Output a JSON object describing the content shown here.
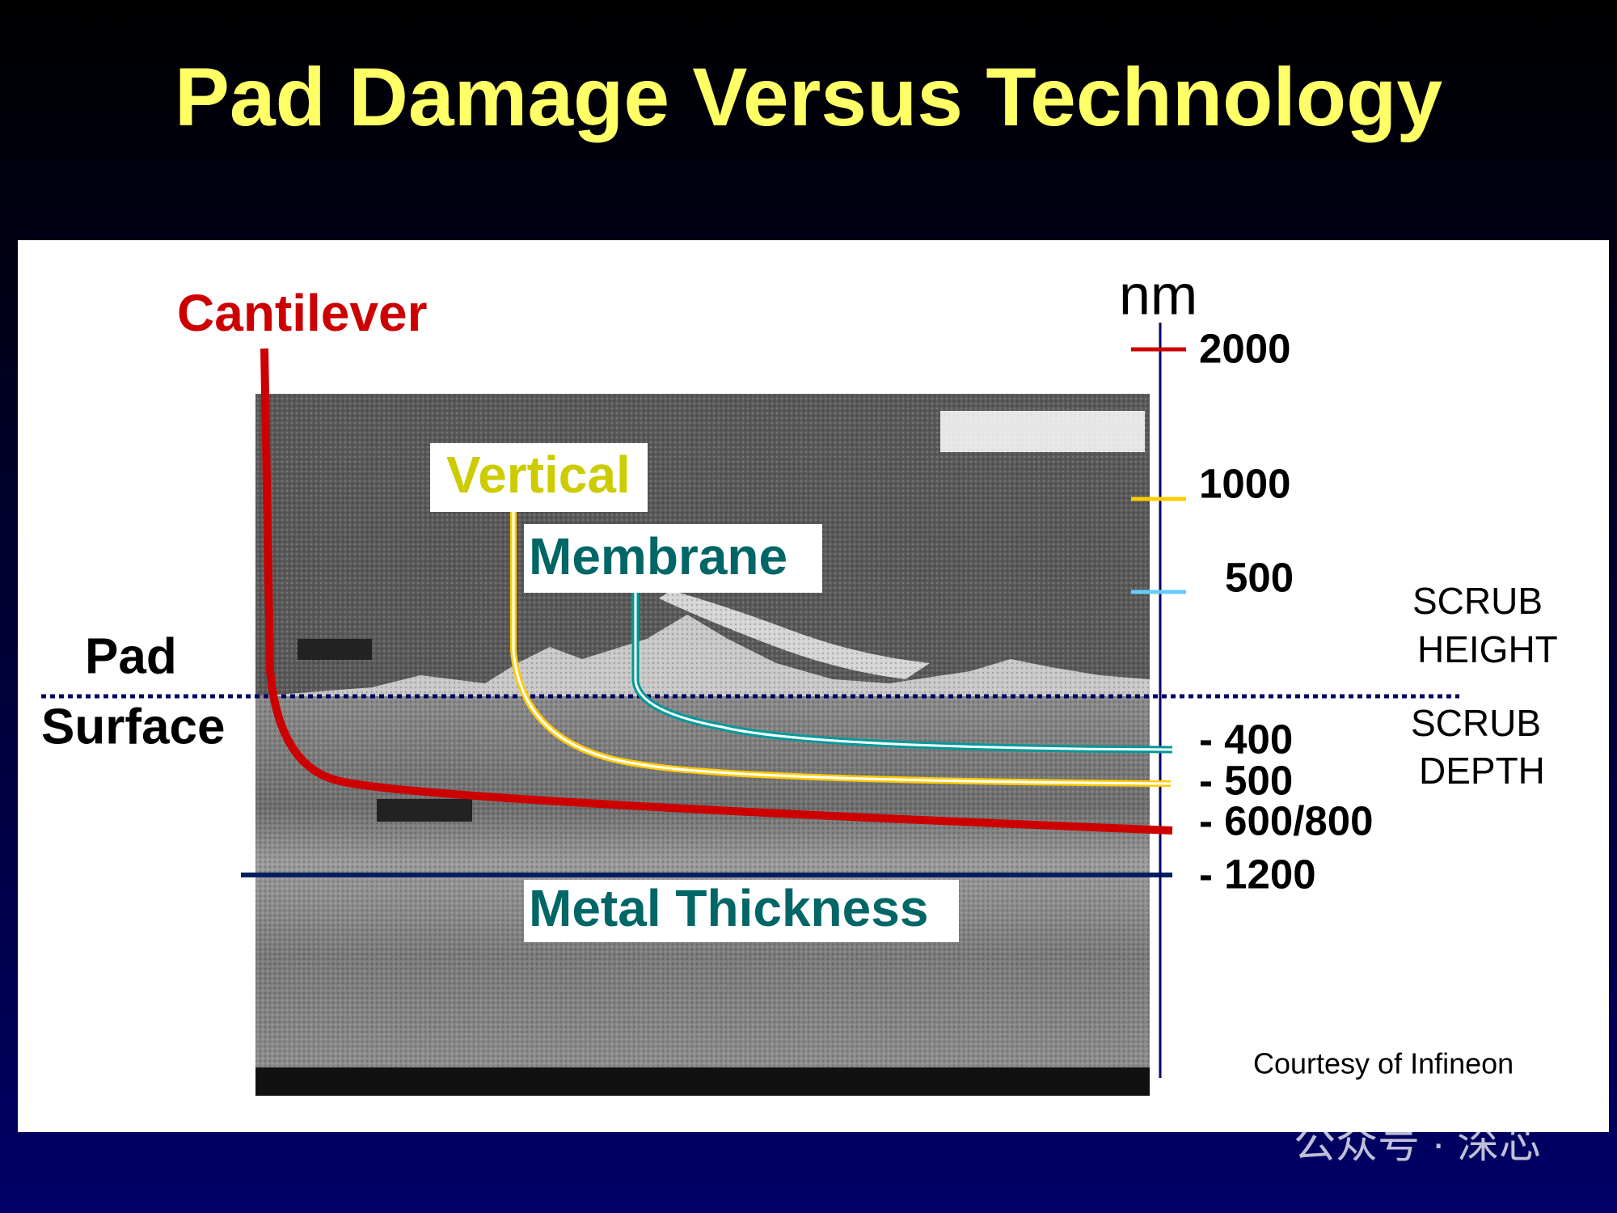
{
  "title": "Pad Damage Versus Technology",
  "labels": {
    "cantilever": "Cantilever",
    "vertical": "Vertical",
    "membrane": "Membrane",
    "metal_thickness": "Metal Thickness",
    "pad": "Pad",
    "surface": "Surface"
  },
  "scale": {
    "unit": "nm",
    "heights": [
      "2000",
      "1000",
      "500"
    ],
    "depths": [
      "- 400",
      "- 500",
      "- 600/800",
      "- 1200"
    ]
  },
  "scrub_height": [
    "SCRUB",
    "HEIGHT"
  ],
  "scrub_depth": [
    "SCRUB",
    "DEPTH"
  ],
  "credit": "Courtesy of Infineon",
  "watermark": "公众号 · 深芯"
}
